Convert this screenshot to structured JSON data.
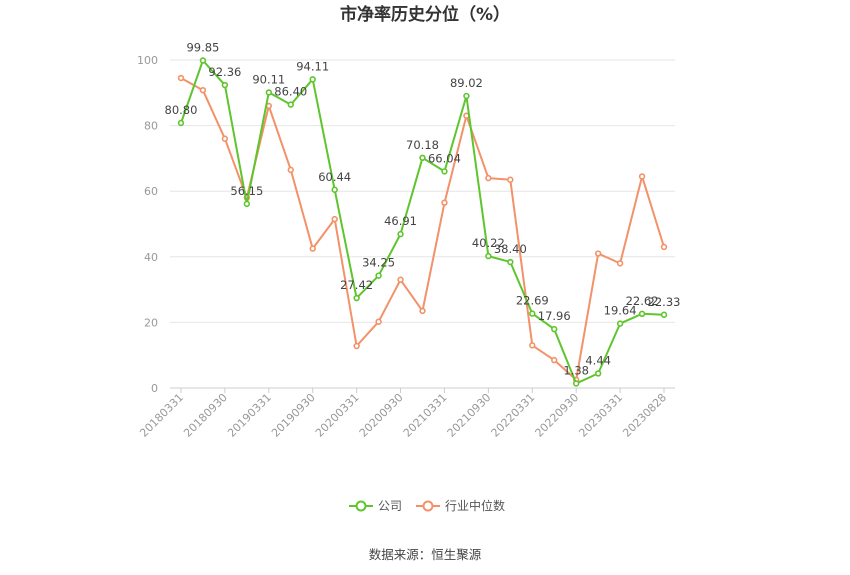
{
  "chart_data": {
    "type": "line",
    "title": "市净率历史分位（%）",
    "x": [
      "20180331",
      "20180630",
      "20180930",
      "20181231",
      "20190331",
      "20190630",
      "20190930",
      "20191231",
      "20200331",
      "20200630",
      "20200930",
      "20201231",
      "20210331",
      "20210630",
      "20210930",
      "20211231",
      "20220331",
      "20220630",
      "20220930",
      "20221231",
      "20230331",
      "20230630",
      "20230828"
    ],
    "x_tick_labels": [
      "20180331",
      "20180930",
      "20190331",
      "20190930",
      "20200331",
      "20200930",
      "20210331",
      "20210930",
      "20220331",
      "20220930",
      "20230331",
      "20230828"
    ],
    "y_ticks": [
      "0",
      "20",
      "40",
      "60",
      "80",
      "100"
    ],
    "ylim": [
      0,
      100
    ],
    "grid": true,
    "legend_position": "bottom",
    "series": [
      {
        "name": "公司",
        "color": "#5ec52d",
        "values": [
          80.8,
          99.85,
          92.36,
          56.15,
          90.11,
          86.4,
          94.11,
          60.44,
          27.42,
          34.25,
          46.91,
          70.18,
          66.04,
          89.02,
          40.22,
          38.4,
          22.69,
          17.96,
          1.38,
          4.44,
          19.64,
          22.62,
          22.33
        ],
        "labels": [
          "80.80",
          "99.85",
          "92.36",
          "56.15",
          "90.11",
          "86.40",
          "94.11",
          "60.44",
          "27.42",
          "34.25",
          "46.91",
          "70.18",
          "66.04",
          "89.02",
          "40.22",
          "38.40",
          "22.69",
          "17.96",
          "1.38",
          "4.44",
          "19.64",
          "22.62",
          "22.33"
        ]
      },
      {
        "name": "行业中位数",
        "color": "#f39168",
        "values": [
          94.5,
          90.8,
          76.0,
          58.0,
          86.0,
          66.5,
          42.5,
          51.5,
          12.8,
          20.2,
          33.0,
          23.5,
          56.5,
          83.0,
          64.0,
          63.5,
          13.0,
          8.5,
          2.5,
          41.0,
          38.0,
          64.5,
          43.0
        ]
      }
    ]
  },
  "source": "数据来源：恒生聚源"
}
